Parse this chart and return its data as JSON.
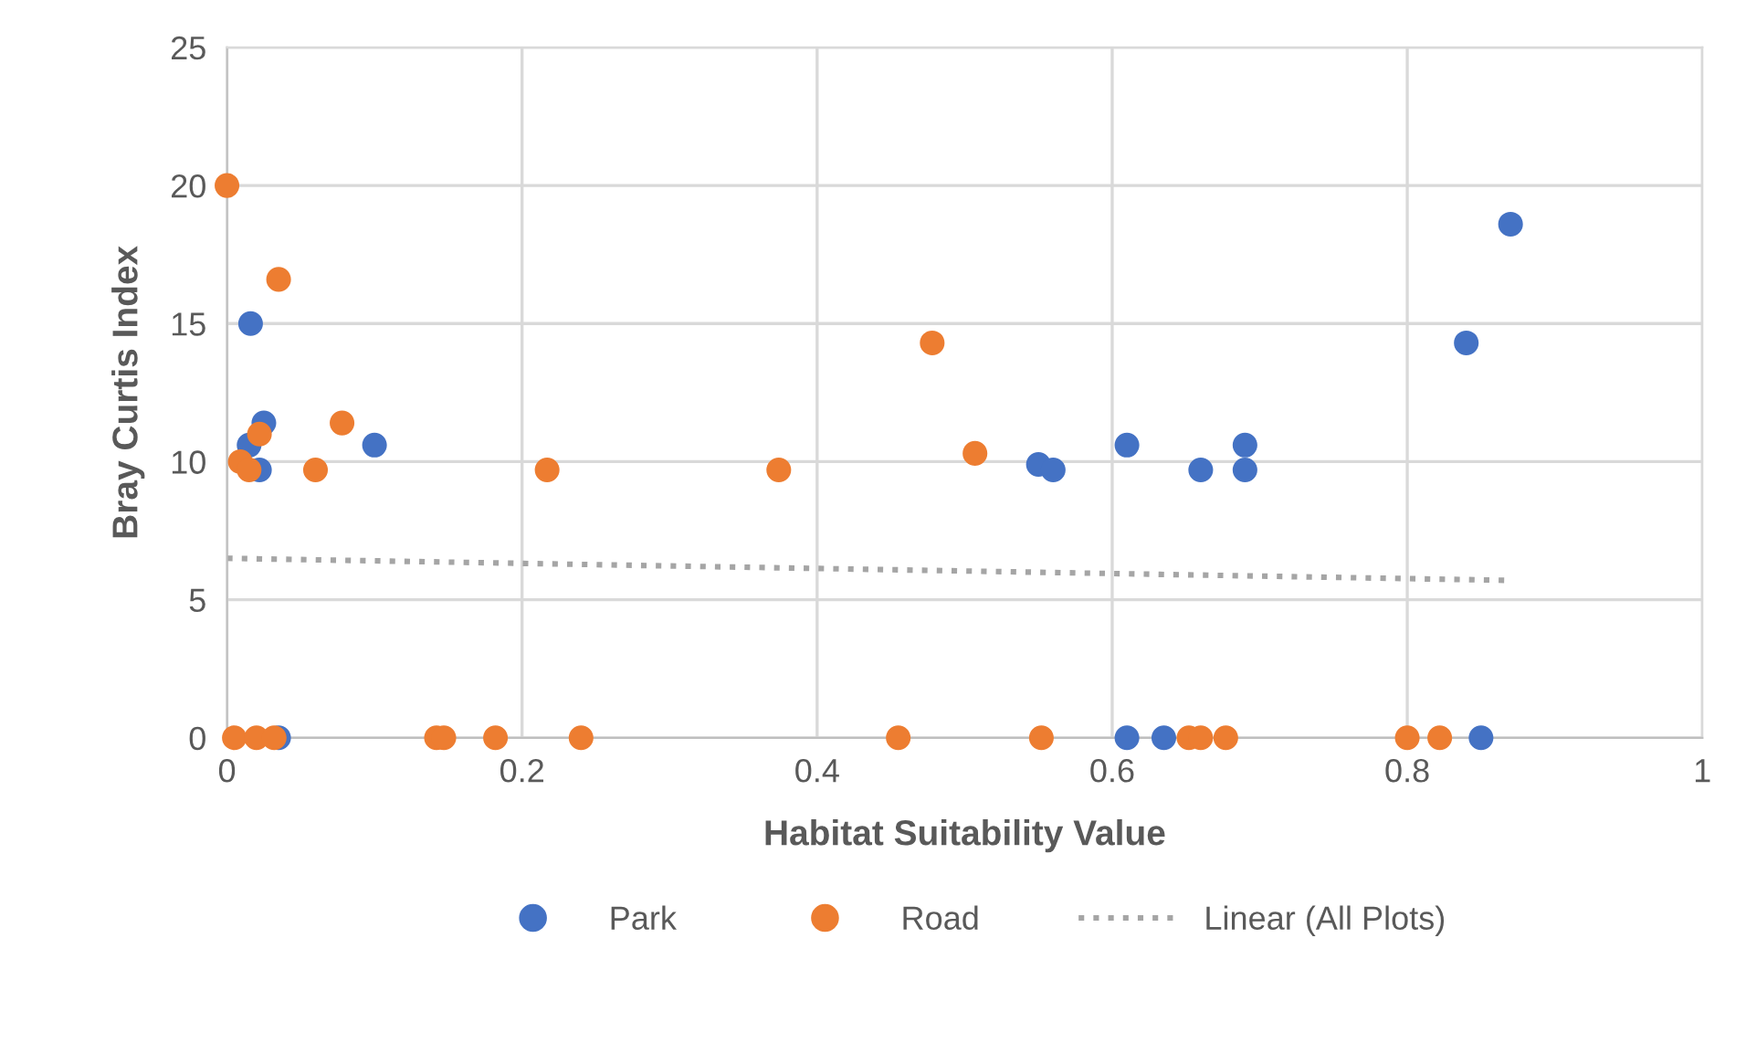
{
  "chart_data": {
    "type": "scatter",
    "xlabel": "Habitat Suitability Value",
    "ylabel": "Bray Curtis Index",
    "xlim": [
      0,
      1
    ],
    "xticks": [
      0,
      0.2,
      0.4,
      0.6,
      0.8,
      1
    ],
    "ylim": [
      0,
      25
    ],
    "yticks": [
      0,
      5,
      10,
      15,
      20,
      25
    ],
    "grid": true,
    "legend": "bottom",
    "marker": "circle",
    "series": [
      {
        "name": "Park",
        "color": "#4472c4",
        "x": [
          0.015,
          0.016,
          0.025,
          0.022,
          0.1,
          0.55,
          0.56,
          0.61,
          0.66,
          0.69,
          0.69,
          0.84,
          0.87,
          0.035,
          0.61,
          0.635,
          0.85
        ],
        "values": [
          10.6,
          15.0,
          11.4,
          9.7,
          10.6,
          9.9,
          9.7,
          10.6,
          9.7,
          10.6,
          9.7,
          14.3,
          18.6,
          0,
          0,
          0,
          0
        ]
      },
      {
        "name": "Road",
        "color": "#ed7d31",
        "x": [
          0.0,
          0.035,
          0.022,
          0.078,
          0.009,
          0.015,
          0.06,
          0.217,
          0.374,
          0.478,
          0.507,
          0.005,
          0.02,
          0.032,
          0.142,
          0.147,
          0.182,
          0.24,
          0.455,
          0.552,
          0.652,
          0.66,
          0.677,
          0.8,
          0.822
        ],
        "values": [
          20.0,
          16.6,
          11.0,
          11.4,
          10.0,
          9.7,
          9.7,
          9.7,
          9.7,
          14.3,
          10.3,
          0,
          0,
          0,
          0,
          0,
          0,
          0,
          0,
          0,
          0,
          0,
          0,
          0,
          0
        ]
      },
      {
        "name": "Linear (All Plots)",
        "type": "line",
        "color": "#a5a5a5",
        "line_style": "dotted",
        "marker": "none",
        "x": [
          0,
          0.87
        ],
        "values": [
          6.5,
          5.7
        ]
      }
    ]
  }
}
